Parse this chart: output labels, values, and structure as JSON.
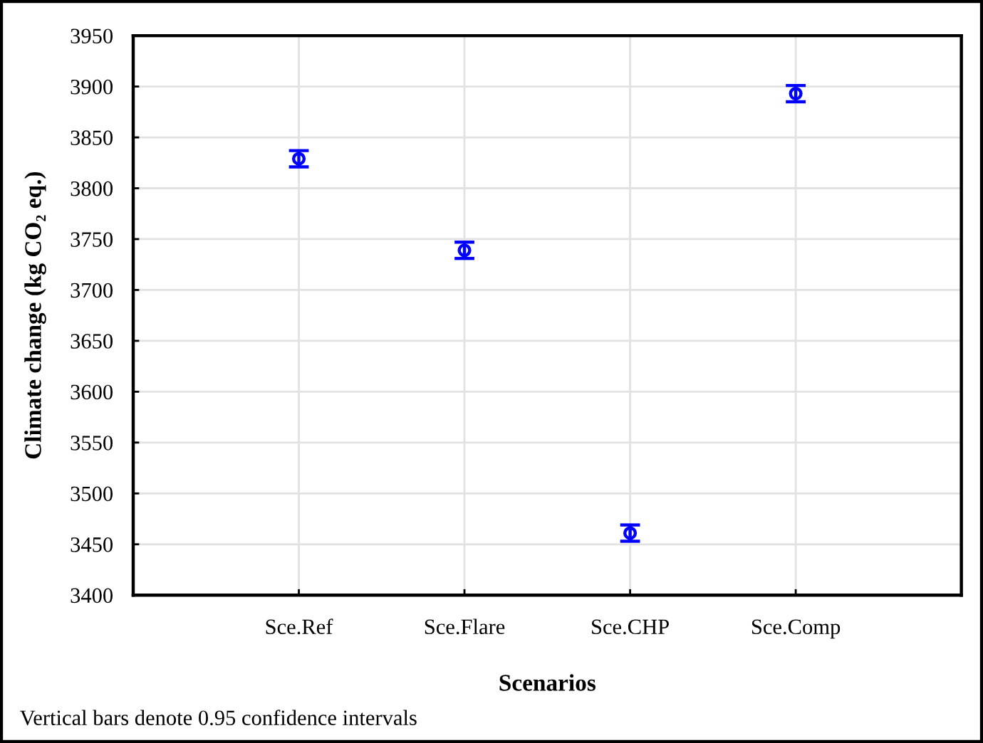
{
  "chart_data": {
    "type": "scatter",
    "xlabel": "Scenarios",
    "ylabel": "Climate change (kg CO₂ eq.)",
    "categories": [
      "Sce.Ref",
      "Sce.Flare",
      "Sce.CHP",
      "Sce.Comp"
    ],
    "values": [
      3829,
      3739,
      3461,
      3893
    ],
    "errors": [
      8,
      8,
      8,
      8
    ],
    "color": "#0000ff",
    "marker": "circle",
    "ylim": [
      3400,
      3950
    ],
    "yticks": [
      3400,
      3450,
      3500,
      3550,
      3600,
      3650,
      3700,
      3750,
      3800,
      3850,
      3900,
      3950
    ],
    "grid": true,
    "annotations": [
      "Vertical bars denote 0.95 confidence intervals"
    ]
  }
}
